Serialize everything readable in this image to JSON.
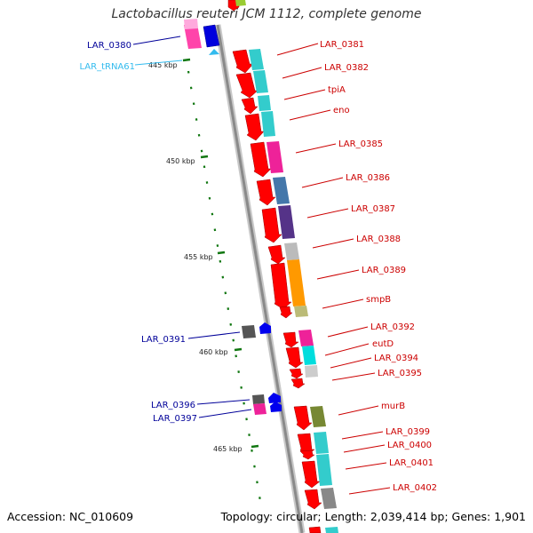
{
  "title": "Lactobacillus reuteri JCM 1112, complete genome",
  "footer": {
    "accession": "Accession: NC_010609",
    "summary": "Topology: circular; Length: 2,039,414 bp; Genes: 1,901"
  },
  "colors": {
    "forward_label": "#cc0000",
    "reverse_label": "#000099",
    "trna_label": "#33bbee",
    "backbone": "#999999",
    "tick": "#117711",
    "gene_red": "#ff0000"
  },
  "kbp_ticks": [
    "445 kbp",
    "450 kbp",
    "455 kbp",
    "460 kbp",
    "465 kbp"
  ],
  "reverse_labels": [
    "LAR_0380",
    "LAR_tRNA61",
    "LAR_0391",
    "LAR_0396",
    "LAR_0397"
  ],
  "forward_labels": [
    "LAR_0381",
    "LAR_0382",
    "tpiA",
    "eno",
    "LAR_0385",
    "LAR_0386",
    "LAR_0387",
    "LAR_0388",
    "LAR_0389",
    "smpB",
    "LAR_0392",
    "eutD",
    "LAR_0394",
    "LAR_0395",
    "murB",
    "LAR_0399",
    "LAR_0400",
    "LAR_0401",
    "LAR_0402"
  ]
}
